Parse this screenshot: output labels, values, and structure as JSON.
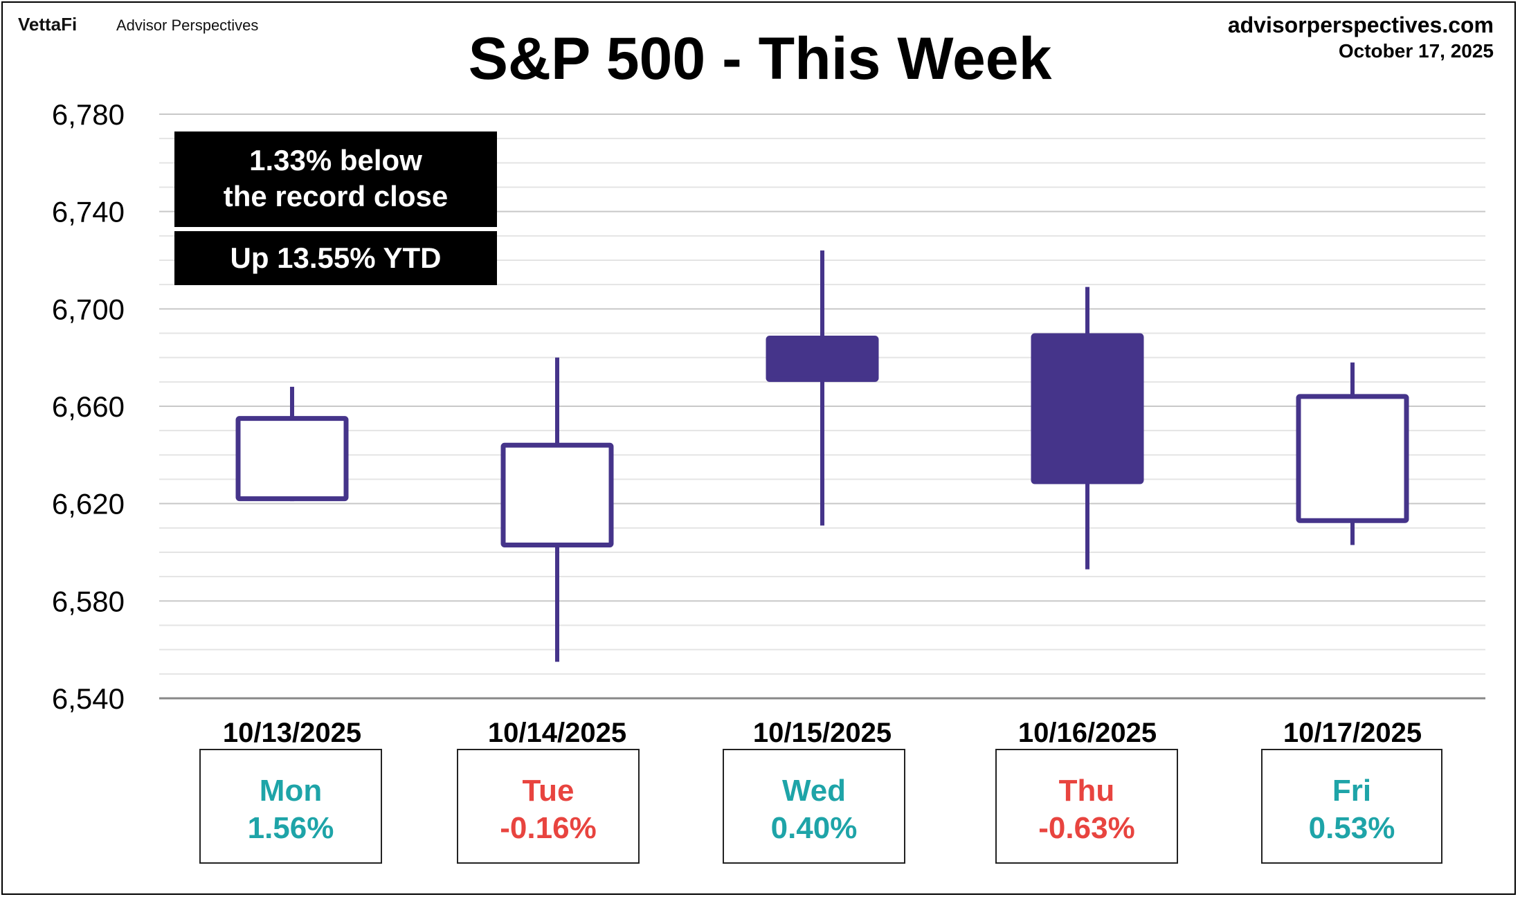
{
  "header": {
    "brand": "VettaFi",
    "brand_sub": "Advisor Perspectives",
    "site": "advisorperspectives.com",
    "date": "October 17, 2025",
    "title": "S&P 500 - This Week"
  },
  "notes": {
    "record": "1.33% below the record close",
    "ytd": "Up 13.55% YTD"
  },
  "colors": {
    "candle": "#45348A",
    "up": "#1EA4A8",
    "down": "#E8443F",
    "grid_major": "#c8c8c8",
    "grid_minor": "#e4e4e4"
  },
  "chart_data": {
    "type": "candlestick",
    "title": "S&P 500 - This Week",
    "ylim": [
      6540,
      6780
    ],
    "yticks": [
      "6,780",
      "6,740",
      "6,700",
      "6,660",
      "6,620",
      "6,580",
      "6,540"
    ],
    "categories": [
      "10/13/2025",
      "10/14/2025",
      "10/15/2025",
      "10/16/2025",
      "10/17/2025"
    ],
    "candles": [
      {
        "date": "10/13/2025",
        "open": 6622,
        "high": 6668,
        "low": 6621,
        "close": 6655
      },
      {
        "date": "10/14/2025",
        "open": 6603,
        "high": 6680,
        "low": 6555,
        "close": 6644
      },
      {
        "date": "10/15/2025",
        "open": 6688,
        "high": 6724,
        "low": 6611,
        "close": 6671
      },
      {
        "date": "10/16/2025",
        "open": 6689,
        "high": 6709,
        "low": 6593,
        "close": 6629
      },
      {
        "date": "10/17/2025",
        "open": 6613,
        "high": 6678,
        "low": 6603,
        "close": 6664
      }
    ],
    "grid": true
  },
  "days": [
    {
      "day": "Mon",
      "change": "1.56%",
      "dir": "up"
    },
    {
      "day": "Tue",
      "change": "-0.16%",
      "dir": "down"
    },
    {
      "day": "Wed",
      "change": "0.40%",
      "dir": "up"
    },
    {
      "day": "Thu",
      "change": "-0.63%",
      "dir": "down"
    },
    {
      "day": "Fri",
      "change": "0.53%",
      "dir": "up"
    }
  ]
}
